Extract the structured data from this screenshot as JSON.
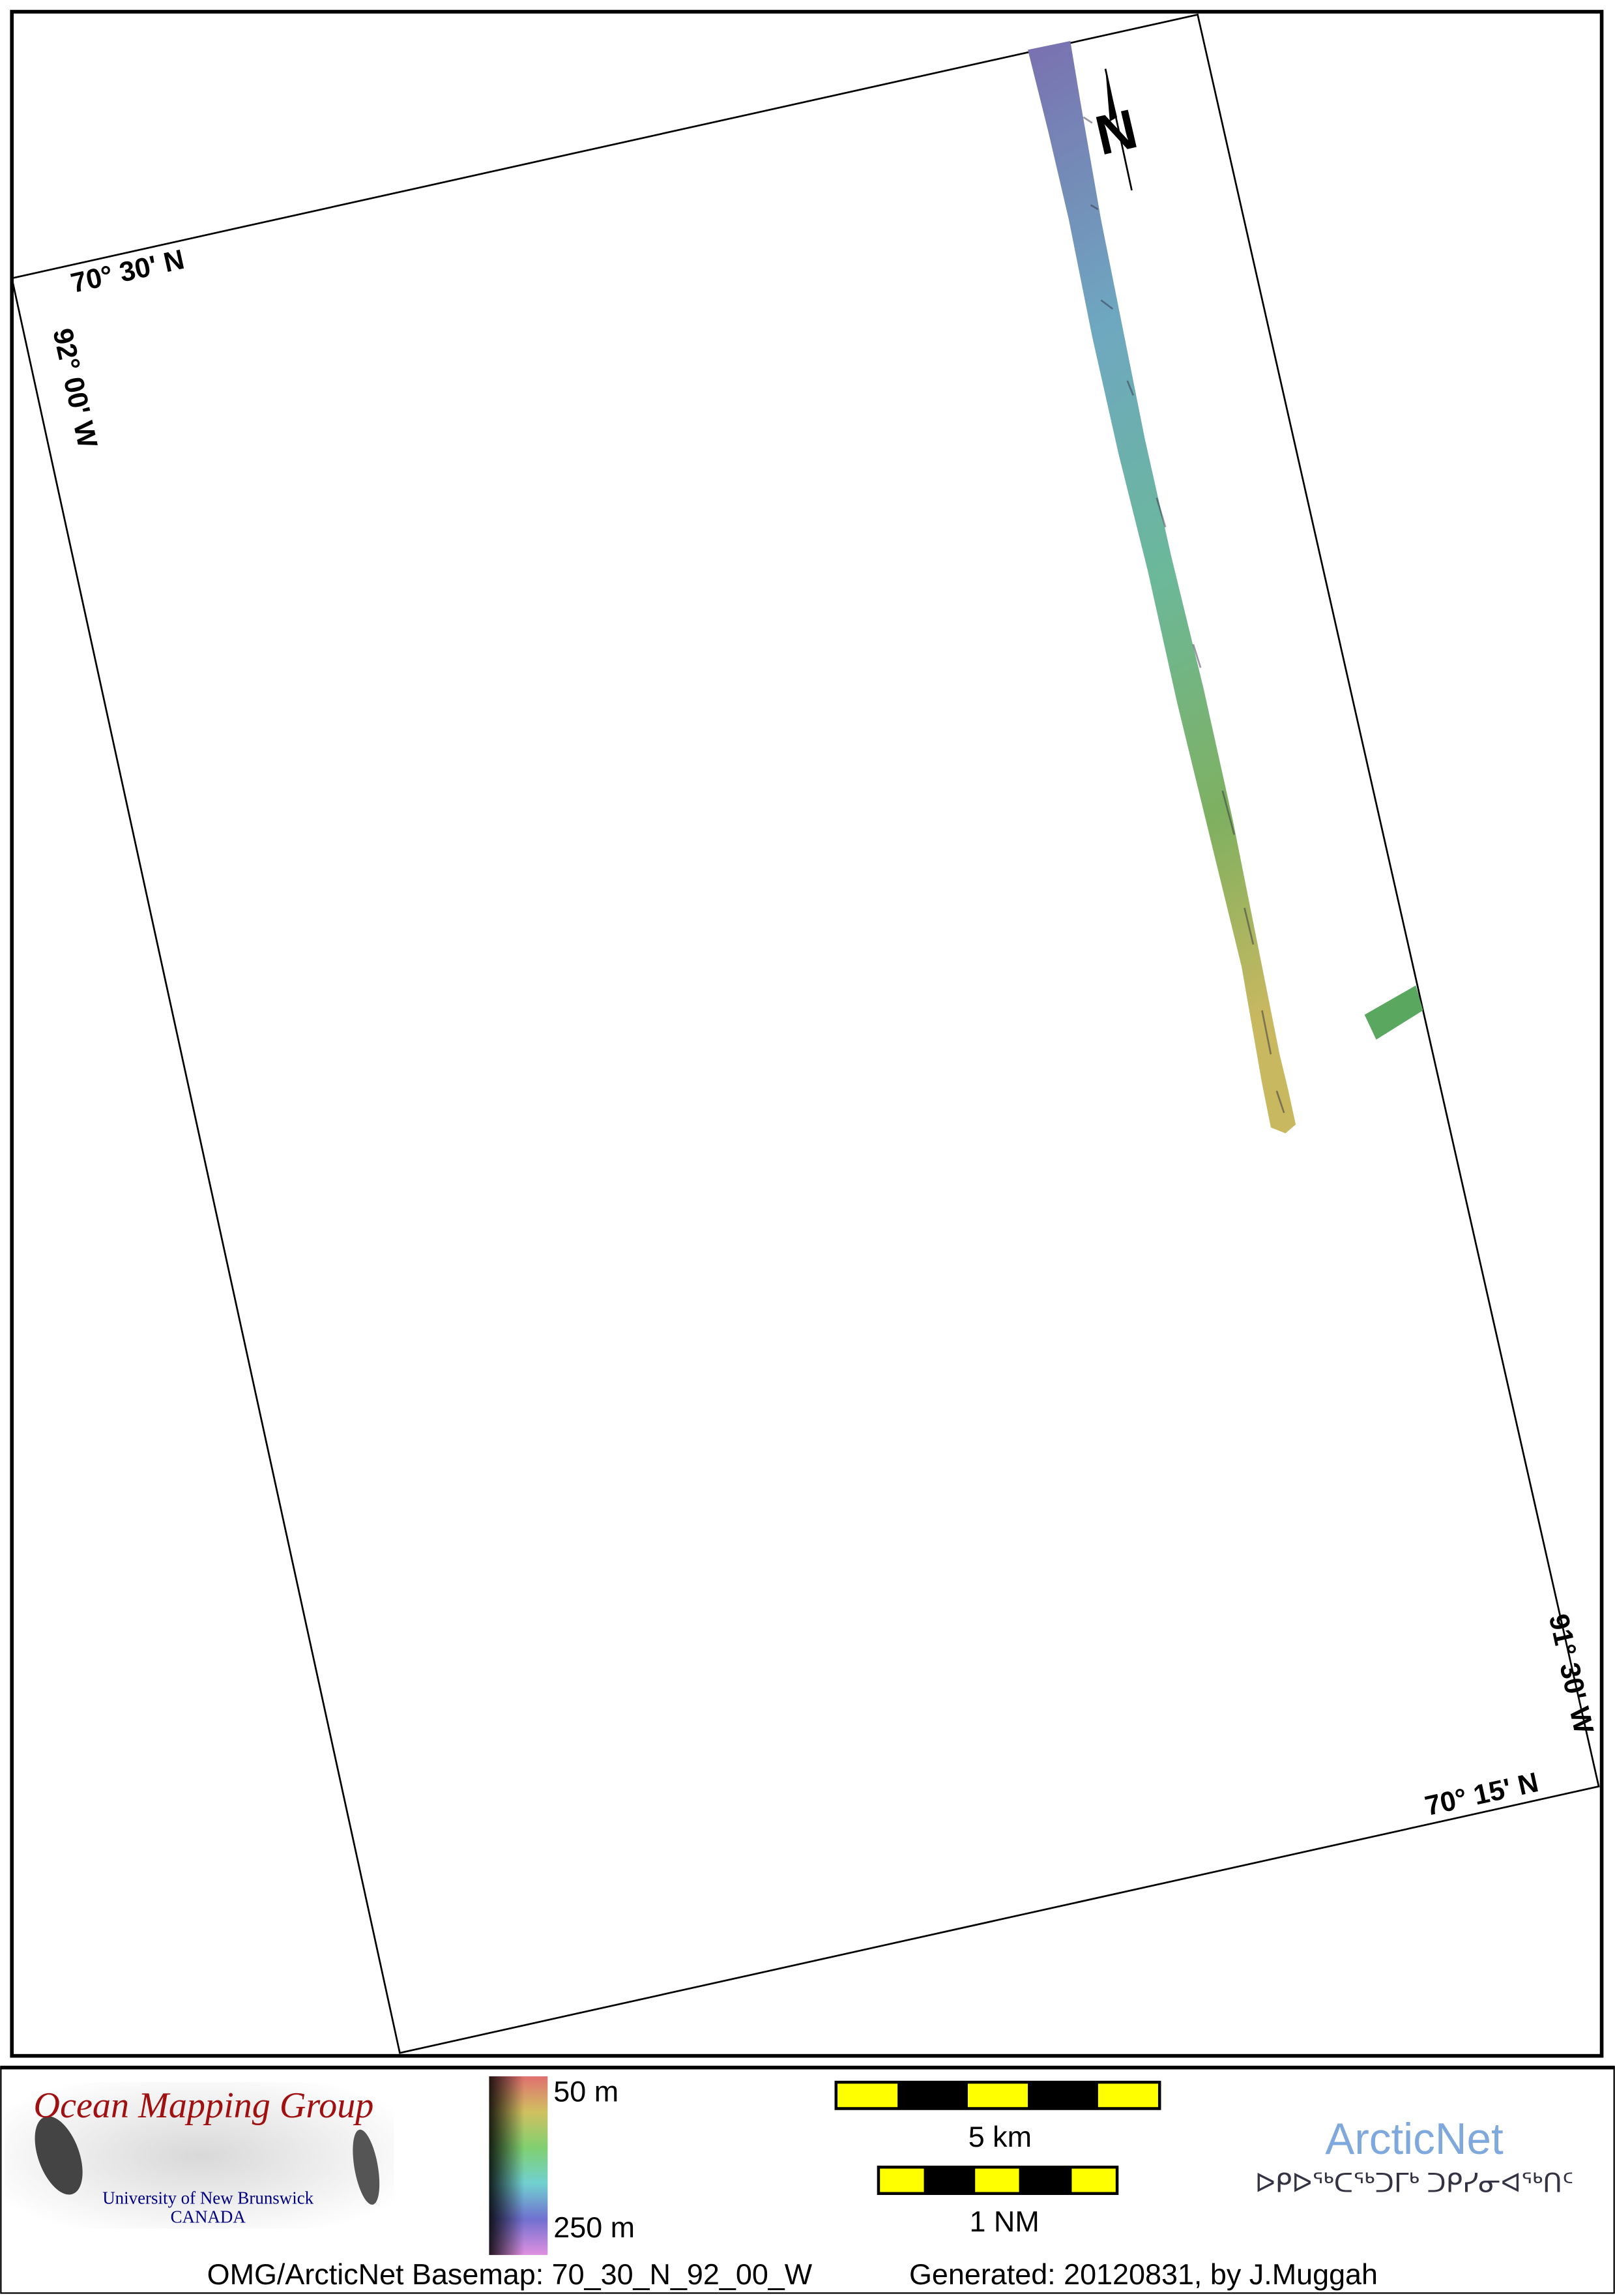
{
  "map": {
    "grid_labels": {
      "top_left_lat": "70° 30' N",
      "left_lon": "92° 00' W",
      "right_lon": "91° 30' W",
      "bottom_right_lat": "70° 15' N"
    },
    "north_arrow_label": "N",
    "swath_colors": [
      "#7a70b0",
      "#6ea8c0",
      "#6bb89a",
      "#7fb060",
      "#c8b860"
    ],
    "patch_color": "#5aa860"
  },
  "legend": {
    "logo": {
      "title": "Ocean Mapping Group",
      "university": "University of New Brunswick",
      "country": "CANADA"
    },
    "depth_scale": {
      "min_label": "50 m",
      "max_label": "250 m",
      "colors": [
        "#e07070",
        "#d0c060",
        "#80d070",
        "#70d0d0",
        "#7070d0",
        "#e090e0"
      ]
    },
    "scale_bar_km": {
      "label": "5 km",
      "segments": 5,
      "colors": [
        "#ffff00",
        "#000000"
      ]
    },
    "scale_bar_nm": {
      "label": "1 NM",
      "segments": 5
    },
    "arcticnet": {
      "name": "ArcticNet",
      "syllabics": "ᐅᑭᐅᖅᑕᖅᑐᒥᒃ ᑐᑭᓯᓂᐊᖅᑎᑦ",
      "color": "#7fa8dc"
    },
    "footer": {
      "basemap": "OMG/ArcticNet Basemap: 70_30_N_92_00_W",
      "generated": "Generated: 20120831, by J.Muggah"
    }
  }
}
